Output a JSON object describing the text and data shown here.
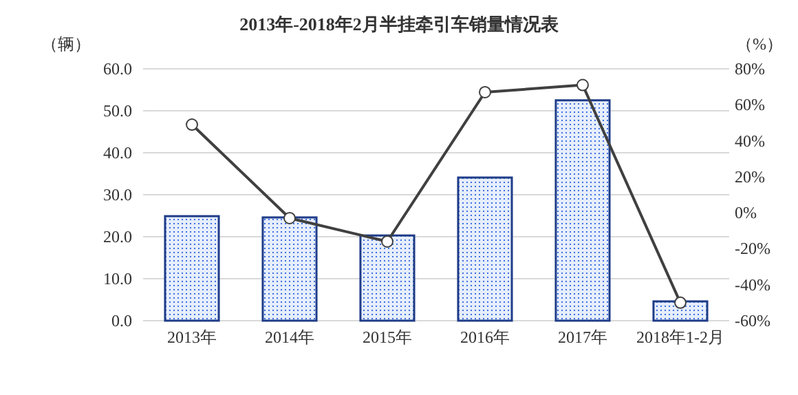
{
  "chart_data": {
    "type": "bar",
    "title": "2013年-2018年2月半挂牵引车销量情况表",
    "ylabel": "（辆）",
    "y2label": "（%）",
    "categories": [
      "2013年",
      "2014年",
      "2015年",
      "2016年",
      "2017年",
      "2018年1-2月"
    ],
    "series": [
      {
        "color": "#1f3c88",
        "values": [
          24.9,
          24.6,
          20.3,
          34.1,
          52.5,
          4.6
        ]
      },
      {
        "type": "line",
        "axis": "y2",
        "color": "#404040",
        "marker": "circle",
        "values": [
          49,
          -3,
          -16,
          67,
          71,
          -50
        ]
      }
    ],
    "ylim": [
      0,
      60
    ],
    "yticks": [
      {
        "value": 0,
        "label": "0.0"
      },
      {
        "value": 10,
        "label": "10.0"
      },
      {
        "value": 20,
        "label": "20.0"
      },
      {
        "value": 30,
        "label": "30.0"
      },
      {
        "value": 40,
        "label": "40.0"
      },
      {
        "value": 50,
        "label": "50.0"
      },
      {
        "value": 60,
        "label": "60.0"
      }
    ],
    "y2lim": [
      -60,
      80
    ],
    "y2ticks": [
      {
        "value": -60,
        "label": "-60%"
      },
      {
        "value": -40,
        "label": "-40%"
      },
      {
        "value": -20,
        "label": "-20%"
      },
      {
        "value": 0,
        "label": "0%"
      },
      {
        "value": 20,
        "label": "20%"
      },
      {
        "value": 40,
        "label": "40%"
      },
      {
        "value": 60,
        "label": "60%"
      },
      {
        "value": 80,
        "label": "80%"
      }
    ],
    "grid": "y"
  }
}
